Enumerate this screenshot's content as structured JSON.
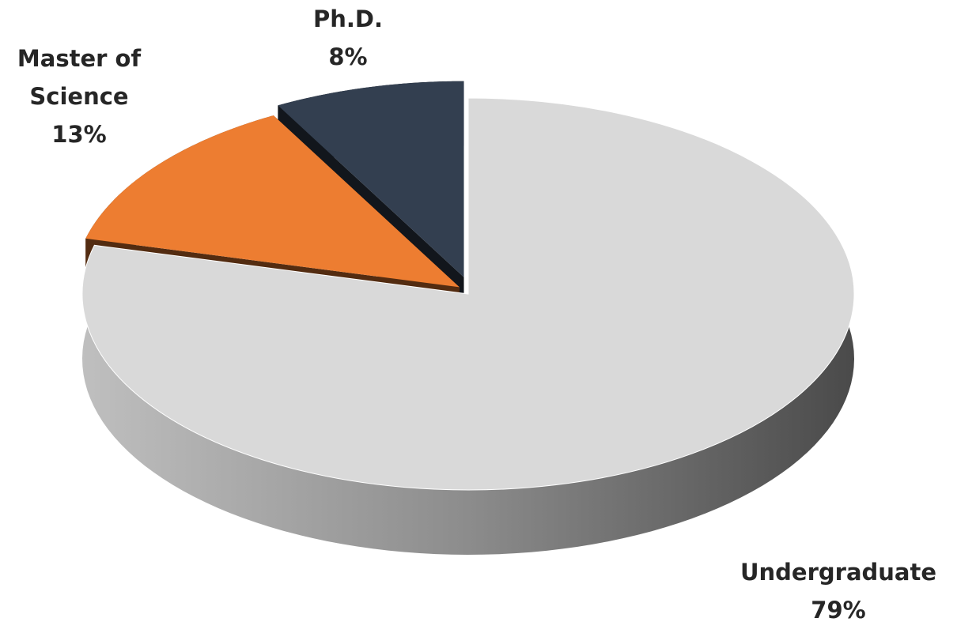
{
  "chart_data": {
    "type": "pie",
    "categories": [
      "Undergraduate",
      "Master of Science",
      "Ph.D."
    ],
    "values": [
      79,
      13,
      8
    ],
    "value_labels": [
      "79%",
      "13%",
      "8%"
    ],
    "colors": [
      "#d9d9d9",
      "#ed7d31",
      "#333f50"
    ]
  }
}
